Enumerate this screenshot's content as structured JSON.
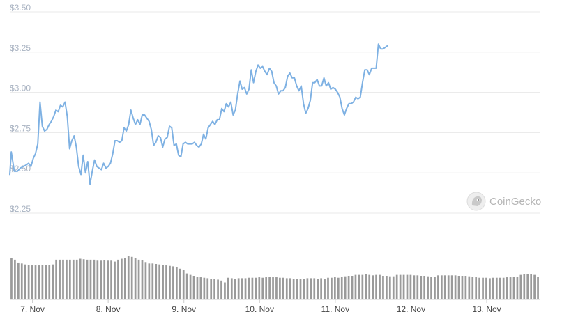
{
  "watermark": {
    "text": "CoinGecko",
    "icon": "gecko-logo-icon"
  },
  "colors": {
    "line": "#7eb1e3",
    "volume": "#9a9a9a",
    "grid": "#e8e8e8",
    "ytick": "#a9b3c2",
    "xtick": "#444444"
  },
  "chart_data": [
    {
      "type": "line",
      "title": "",
      "xlabel": "",
      "ylabel": "",
      "grid": true,
      "ylim": [
        2.25,
        3.5
      ],
      "yticks": [
        {
          "value": 2.25,
          "label": "$2.25"
        },
        {
          "value": 2.5,
          "label": "$2.50"
        },
        {
          "value": 2.75,
          "label": "$2.75"
        },
        {
          "value": 3.0,
          "label": "$3.00"
        },
        {
          "value": 3.25,
          "label": "$3.25"
        },
        {
          "value": 3.5,
          "label": "$3.50"
        }
      ],
      "xlim": [
        6.7,
        13.7
      ],
      "xticks": [
        {
          "value": 7,
          "label": "7. Nov"
        },
        {
          "value": 8,
          "label": "8. Nov"
        },
        {
          "value": 9,
          "label": "9. Nov"
        },
        {
          "value": 10,
          "label": "10. Nov"
        },
        {
          "value": 11,
          "label": "11. Nov"
        },
        {
          "value": 12,
          "label": "12. Nov"
        },
        {
          "value": 13,
          "label": "13. Nov"
        }
      ],
      "x_unit": "day of November",
      "series": [
        {
          "values": [
            [
              6.7,
              2.49
            ],
            [
              6.72,
              2.63
            ],
            [
              6.76,
              2.51
            ],
            [
              6.8,
              2.51
            ],
            [
              6.84,
              2.53
            ],
            [
              6.88,
              2.54
            ],
            [
              6.92,
              2.55
            ],
            [
              6.95,
              2.56
            ],
            [
              6.98,
              2.54
            ],
            [
              7.01,
              2.59
            ],
            [
              7.04,
              2.62
            ],
            [
              7.07,
              2.68
            ],
            [
              7.1,
              2.94
            ],
            [
              7.13,
              2.79
            ],
            [
              7.16,
              2.76
            ],
            [
              7.19,
              2.77
            ],
            [
              7.22,
              2.8
            ],
            [
              7.25,
              2.82
            ],
            [
              7.28,
              2.85
            ],
            [
              7.31,
              2.89
            ],
            [
              7.34,
              2.88
            ],
            [
              7.37,
              2.92
            ],
            [
              7.4,
              2.91
            ],
            [
              7.43,
              2.94
            ],
            [
              7.46,
              2.85
            ],
            [
              7.49,
              2.65
            ],
            [
              7.52,
              2.7
            ],
            [
              7.55,
              2.73
            ],
            [
              7.58,
              2.66
            ],
            [
              7.61,
              2.54
            ],
            [
              7.64,
              2.49
            ],
            [
              7.67,
              2.61
            ],
            [
              7.7,
              2.5
            ],
            [
              7.73,
              2.57
            ],
            [
              7.76,
              2.43
            ],
            [
              7.79,
              2.51
            ],
            [
              7.82,
              2.58
            ],
            [
              7.85,
              2.54
            ],
            [
              7.88,
              2.53
            ],
            [
              7.91,
              2.52
            ],
            [
              7.94,
              2.56
            ],
            [
              7.97,
              2.53
            ],
            [
              8.0,
              2.54
            ],
            [
              8.03,
              2.56
            ],
            [
              8.06,
              2.62
            ],
            [
              8.09,
              2.7
            ],
            [
              8.12,
              2.7
            ],
            [
              8.15,
              2.69
            ],
            [
              8.18,
              2.7
            ],
            [
              8.21,
              2.78
            ],
            [
              8.24,
              2.76
            ],
            [
              8.27,
              2.8
            ],
            [
              8.3,
              2.89
            ],
            [
              8.33,
              2.84
            ],
            [
              8.36,
              2.8
            ],
            [
              8.39,
              2.83
            ],
            [
              8.42,
              2.8
            ],
            [
              8.45,
              2.86
            ],
            [
              8.48,
              2.86
            ],
            [
              8.51,
              2.84
            ],
            [
              8.54,
              2.82
            ],
            [
              8.57,
              2.77
            ],
            [
              8.6,
              2.67
            ],
            [
              8.63,
              2.69
            ],
            [
              8.66,
              2.73
            ],
            [
              8.69,
              2.72
            ],
            [
              8.72,
              2.66
            ],
            [
              8.75,
              2.71
            ],
            [
              8.78,
              2.72
            ],
            [
              8.81,
              2.79
            ],
            [
              8.84,
              2.78
            ],
            [
              8.87,
              2.67
            ],
            [
              8.9,
              2.68
            ],
            [
              8.93,
              2.61
            ],
            [
              8.96,
              2.6
            ],
            [
              8.99,
              2.68
            ],
            [
              9.02,
              2.69
            ],
            [
              9.05,
              2.68
            ],
            [
              9.08,
              2.68
            ],
            [
              9.11,
              2.68
            ],
            [
              9.14,
              2.69
            ],
            [
              9.17,
              2.67
            ],
            [
              9.2,
              2.66
            ],
            [
              9.23,
              2.68
            ],
            [
              9.26,
              2.74
            ],
            [
              9.29,
              2.71
            ],
            [
              9.32,
              2.78
            ],
            [
              9.35,
              2.8
            ],
            [
              9.38,
              2.82
            ],
            [
              9.41,
              2.8
            ],
            [
              9.44,
              2.83
            ],
            [
              9.47,
              2.83
            ],
            [
              9.5,
              2.9
            ],
            [
              9.53,
              2.88
            ],
            [
              9.56,
              2.93
            ],
            [
              9.59,
              2.91
            ],
            [
              9.62,
              2.94
            ],
            [
              9.65,
              2.86
            ],
            [
              9.68,
              2.89
            ],
            [
              9.71,
              2.99
            ],
            [
              9.74,
              3.07
            ],
            [
              9.77,
              3.02
            ],
            [
              9.8,
              3.03
            ],
            [
              9.83,
              2.99
            ],
            [
              9.86,
              3.02
            ],
            [
              9.89,
              3.14
            ],
            [
              9.92,
              3.06
            ],
            [
              9.95,
              3.13
            ],
            [
              9.98,
              3.17
            ],
            [
              10.01,
              3.15
            ],
            [
              10.04,
              3.16
            ],
            [
              10.07,
              3.13
            ],
            [
              10.1,
              3.11
            ],
            [
              10.13,
              3.15
            ],
            [
              10.16,
              3.13
            ],
            [
              10.19,
              3.06
            ],
            [
              10.22,
              3.04
            ],
            [
              10.25,
              2.99
            ],
            [
              10.28,
              3.01
            ],
            [
              10.31,
              3.01
            ],
            [
              10.34,
              3.03
            ],
            [
              10.37,
              3.1
            ],
            [
              10.4,
              3.12
            ],
            [
              10.43,
              3.09
            ],
            [
              10.46,
              3.09
            ],
            [
              10.49,
              3.04
            ],
            [
              10.52,
              3.01
            ],
            [
              10.55,
              3.04
            ],
            [
              10.58,
              2.93
            ],
            [
              10.61,
              2.87
            ],
            [
              10.64,
              2.9
            ],
            [
              10.67,
              2.95
            ],
            [
              10.7,
              3.06
            ],
            [
              10.73,
              3.06
            ],
            [
              10.76,
              3.08
            ],
            [
              10.79,
              3.04
            ],
            [
              10.82,
              3.04
            ],
            [
              10.85,
              3.09
            ],
            [
              10.88,
              3.04
            ],
            [
              10.91,
              3.06
            ],
            [
              10.94,
              3.02
            ],
            [
              10.97,
              3.03
            ],
            [
              11.0,
              3.02
            ],
            [
              11.03,
              3.0
            ],
            [
              11.06,
              2.97
            ],
            [
              11.09,
              2.9
            ],
            [
              11.12,
              2.86
            ],
            [
              11.15,
              2.9
            ],
            [
              11.18,
              2.93
            ],
            [
              11.21,
              2.93
            ],
            [
              11.24,
              2.94
            ],
            [
              11.27,
              2.97
            ],
            [
              11.3,
              2.96
            ],
            [
              11.33,
              2.97
            ],
            [
              11.36,
              3.06
            ],
            [
              11.39,
              3.14
            ],
            [
              11.42,
              3.14
            ],
            [
              11.45,
              3.11
            ],
            [
              11.48,
              3.15
            ],
            [
              11.51,
              3.15
            ],
            [
              11.54,
              3.15
            ],
            [
              11.57,
              3.3
            ],
            [
              11.6,
              3.27
            ],
            [
              11.63,
              3.27
            ],
            [
              11.66,
              3.28
            ],
            [
              11.69,
              3.29
            ]
          ]
        }
      ]
    },
    {
      "type": "bar",
      "title": "",
      "xlabel": "",
      "ylabel": "",
      "ylim": [
        0,
        1
      ],
      "values": [
        0.88,
        0.84,
        0.78,
        0.76,
        0.74,
        0.73,
        0.72,
        0.72,
        0.72,
        0.73,
        0.73,
        0.73,
        0.74,
        0.84,
        0.84,
        0.84,
        0.84,
        0.84,
        0.84,
        0.84,
        0.86,
        0.85,
        0.84,
        0.84,
        0.84,
        0.82,
        0.82,
        0.83,
        0.82,
        0.82,
        0.8,
        0.84,
        0.86,
        0.87,
        0.92,
        0.9,
        0.87,
        0.84,
        0.83,
        0.79,
        0.76,
        0.76,
        0.75,
        0.74,
        0.73,
        0.72,
        0.71,
        0.7,
        0.68,
        0.65,
        0.62,
        0.55,
        0.52,
        0.5,
        0.48,
        0.47,
        0.46,
        0.45,
        0.44,
        0.44,
        0.42,
        0.4,
        0.36,
        0.46,
        0.45,
        0.44,
        0.45,
        0.45,
        0.45,
        0.46,
        0.46,
        0.46,
        0.47,
        0.46,
        0.47,
        0.48,
        0.47,
        0.47,
        0.46,
        0.46,
        0.45,
        0.45,
        0.44,
        0.44,
        0.44,
        0.44,
        0.45,
        0.45,
        0.45,
        0.44,
        0.45,
        0.44,
        0.46,
        0.46,
        0.47,
        0.46,
        0.48,
        0.49,
        0.5,
        0.5,
        0.52,
        0.52,
        0.52,
        0.53,
        0.52,
        0.51,
        0.52,
        0.52,
        0.5,
        0.5,
        0.49,
        0.49,
        0.52,
        0.52,
        0.52,
        0.52,
        0.52,
        0.51,
        0.51,
        0.5,
        0.5,
        0.49,
        0.48,
        0.48,
        0.51,
        0.51,
        0.51,
        0.51,
        0.51,
        0.51,
        0.5,
        0.5,
        0.5,
        0.49,
        0.48,
        0.47,
        0.46,
        0.46,
        0.46,
        0.45,
        0.46,
        0.46,
        0.46,
        0.46,
        0.47,
        0.47,
        0.48,
        0.48,
        0.52,
        0.53,
        0.53,
        0.53,
        0.52,
        0.48
      ]
    }
  ]
}
